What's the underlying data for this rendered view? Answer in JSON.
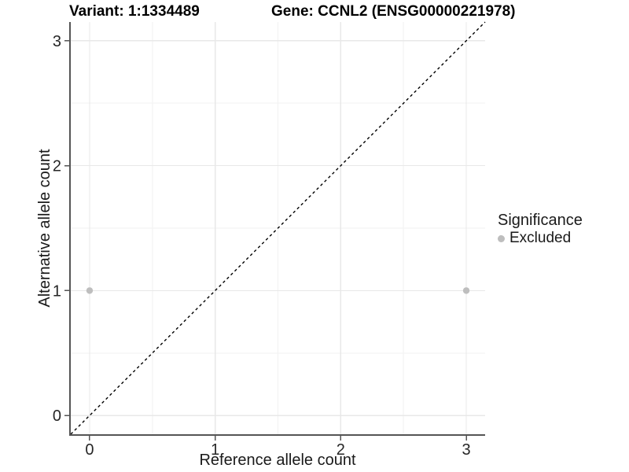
{
  "figure": {
    "background": "#ffffff"
  },
  "chart_data": {
    "type": "scatter",
    "title_left": "Variant: 1:1334489",
    "title_right": "Gene: CCNL2 (ENSG00000221978)",
    "xlabel": "Reference allele count",
    "ylabel": "Alternative allele count",
    "xlim": [
      -0.15,
      3.15
    ],
    "ylim": [
      -0.15,
      3.15
    ],
    "x_ticks": [
      0,
      1,
      2,
      3
    ],
    "y_ticks": [
      0,
      1,
      2,
      3
    ],
    "x_tick_labels": [
      "0",
      "1",
      "2",
      "3"
    ],
    "y_tick_labels": [
      "0",
      "1",
      "2",
      "3"
    ],
    "x_minor_gridlines": [
      0.5,
      1.5,
      2.5
    ],
    "y_minor_gridlines": [
      0.5,
      1.5,
      2.5
    ],
    "grid": true,
    "identity_line": {
      "style": "dashed",
      "slope": 1,
      "intercept": 0
    },
    "series": [
      {
        "name": "Excluded",
        "color": "#bebebe",
        "points": [
          {
            "x": 0,
            "y": 1
          },
          {
            "x": 3,
            "y": 1
          }
        ]
      }
    ],
    "legend": {
      "title": "Significance",
      "position": "right",
      "entries": [
        {
          "label": "Excluded",
          "color": "#bebebe"
        }
      ]
    },
    "colors": {
      "axis": "#555555",
      "tick_label": "#262626",
      "grid_major": "#e8e8e8",
      "grid_minor": "#f2f2f2",
      "identity_line": "#000000",
      "point": "#bebebe"
    },
    "point_radius": 4.2
  }
}
